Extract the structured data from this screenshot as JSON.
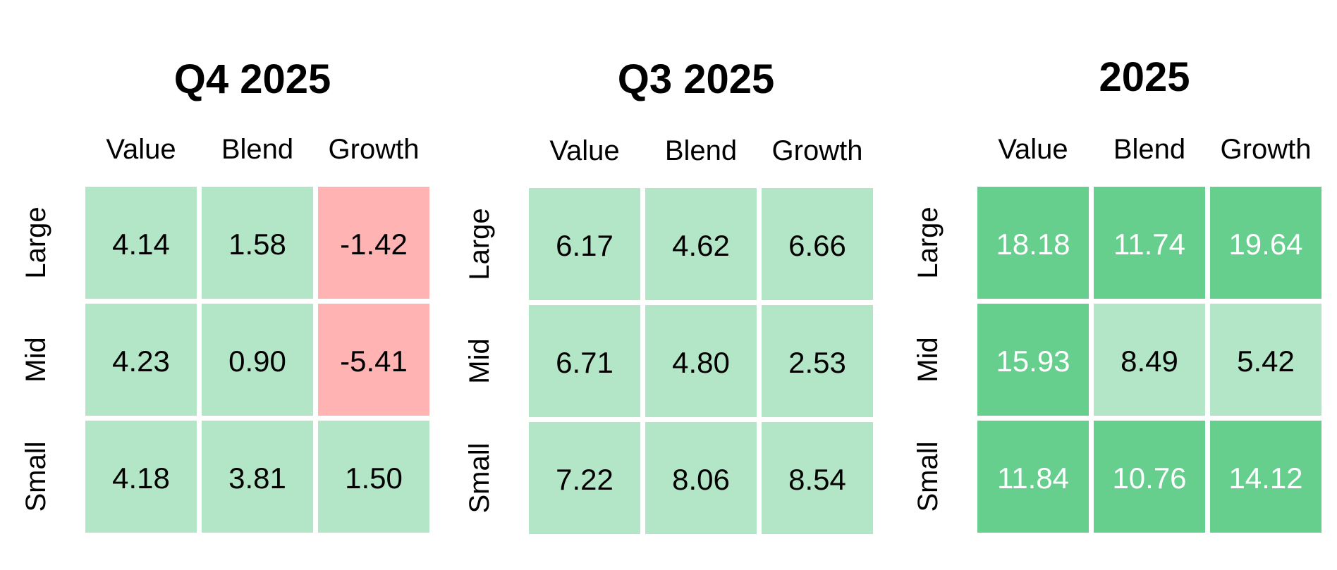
{
  "chart_data": [
    {
      "type": "heatmap",
      "title": "Q4 2025",
      "columns": [
        "Value",
        "Blend",
        "Growth"
      ],
      "rows": [
        "Large",
        "Mid",
        "Small"
      ],
      "values": [
        [
          "4.14",
          "1.58",
          "-1.42"
        ],
        [
          "4.23",
          "0.90",
          "-5.41"
        ],
        [
          "4.18",
          "3.81",
          "1.50"
        ]
      ]
    },
    {
      "type": "heatmap",
      "title": "Q3 2025",
      "columns": [
        "Value",
        "Blend",
        "Growth"
      ],
      "rows": [
        "Large",
        "Mid",
        "Small"
      ],
      "values": [
        [
          "6.17",
          "4.62",
          "6.66"
        ],
        [
          "6.71",
          "4.80",
          "2.53"
        ],
        [
          "7.22",
          "8.06",
          "8.54"
        ]
      ]
    },
    {
      "type": "heatmap",
      "title": "2025",
      "columns": [
        "Value",
        "Blend",
        "Growth"
      ],
      "rows": [
        "Large",
        "Mid",
        "Small"
      ],
      "values": [
        [
          "18.18",
          "11.74",
          "19.64"
        ],
        [
          "15.93",
          "8.49",
          "5.42"
        ],
        [
          "11.84",
          "10.76",
          "14.12"
        ]
      ]
    }
  ],
  "colors": {
    "negative": "#ffb3b3",
    "light_positive": "#b3e6c6",
    "strong_positive": "#66cf8e",
    "dark_text": "#000000",
    "light_text": "#ffffff"
  }
}
